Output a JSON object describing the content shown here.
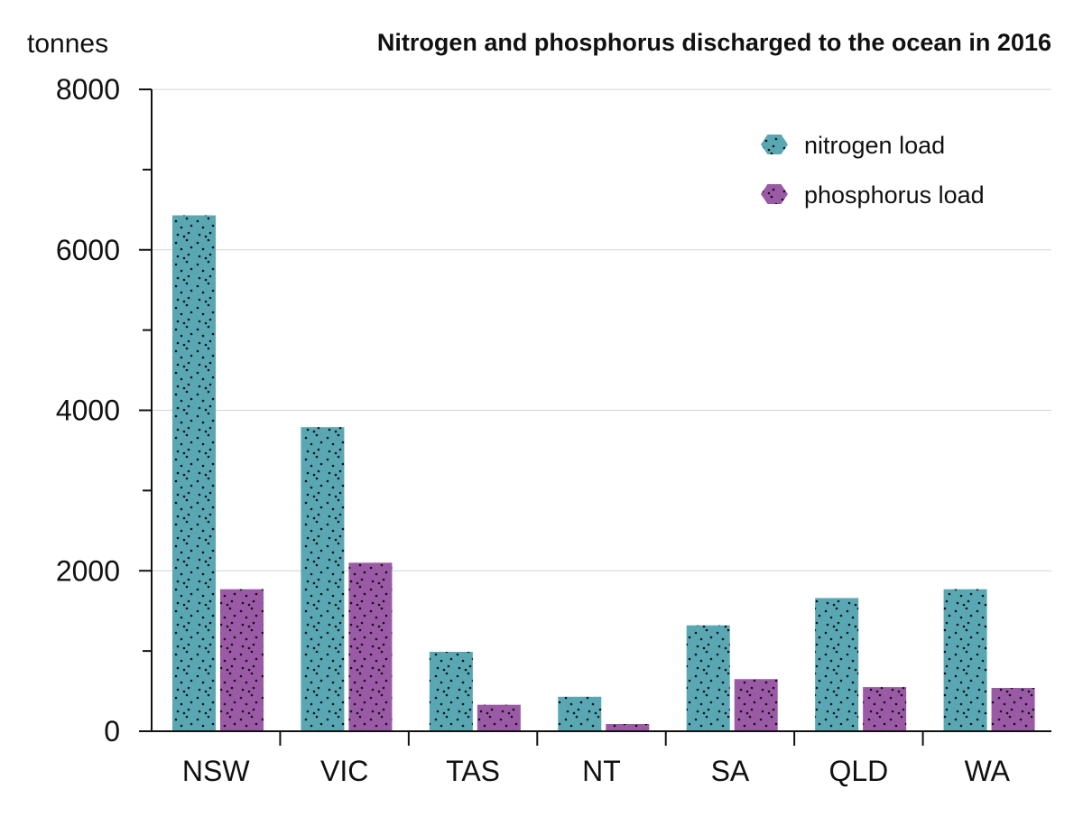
{
  "chart_data": {
    "type": "bar",
    "title": "Nitrogen and phosphorus discharged to the ocean in 2016",
    "ylabel": "tonnes",
    "xlabel": "",
    "categories": [
      "NSW",
      "VIC",
      "TAS",
      "NT",
      "SA",
      "QLD",
      "WA"
    ],
    "series": [
      {
        "name": "nitrogen load",
        "color": "#5aa7b4",
        "values": [
          6430,
          3790,
          990,
          430,
          1320,
          1660,
          1770
        ]
      },
      {
        "name": "phosphorus load",
        "color": "#9a5aa5",
        "values": [
          1770,
          2100,
          330,
          90,
          650,
          550,
          540
        ]
      }
    ],
    "ylim": [
      0,
      8000
    ],
    "yticks": [
      "0",
      "2000",
      "4000",
      "6000",
      "8000"
    ],
    "grid": true,
    "legend_position": "top-right",
    "bar_texture": "dotted"
  }
}
